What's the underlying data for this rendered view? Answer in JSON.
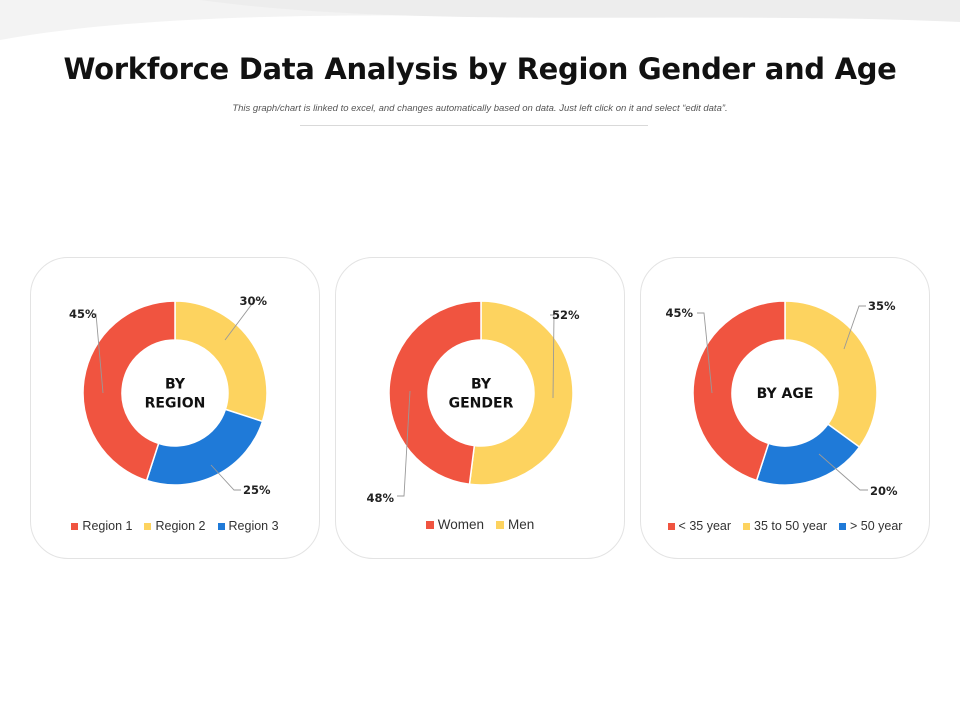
{
  "header": {
    "title": "Workforce Data Analysis by Region Gender and Age",
    "subtitle": "This graph/chart is linked to excel, and changes automatically based on data. Just left click on it and select “edit data”."
  },
  "colors": {
    "red": "#f05440",
    "yellow": "#fdd35f",
    "blue": "#1f7ad8"
  },
  "chart_data": [
    {
      "type": "pie",
      "subtype": "donut",
      "center_label": [
        "BY",
        "REGION"
      ],
      "categories": [
        "Region 1",
        "Region 2",
        "Region 3"
      ],
      "values": [
        45,
        30,
        25
      ],
      "labels": [
        "45%",
        "30%",
        "25%"
      ],
      "colors": [
        "#f05440",
        "#fdd35f",
        "#1f7ad8"
      ],
      "legend": "bottom"
    },
    {
      "type": "pie",
      "subtype": "donut",
      "center_label": [
        "BY",
        "GENDER"
      ],
      "categories": [
        "Women",
        "Men"
      ],
      "values": [
        48,
        52
      ],
      "labels": [
        "48%",
        "52%"
      ],
      "colors": [
        "#f05440",
        "#fdd35f"
      ],
      "legend": "bottom"
    },
    {
      "type": "pie",
      "subtype": "donut",
      "center_label": [
        "BY AGE"
      ],
      "categories": [
        "< 35 year",
        "35 to 50 year",
        "> 50 year"
      ],
      "values": [
        45,
        35,
        20
      ],
      "labels": [
        "45%",
        "35%",
        "20%"
      ],
      "colors": [
        "#f05440",
        "#fdd35f",
        "#1f7ad8"
      ],
      "legend": "bottom"
    }
  ]
}
